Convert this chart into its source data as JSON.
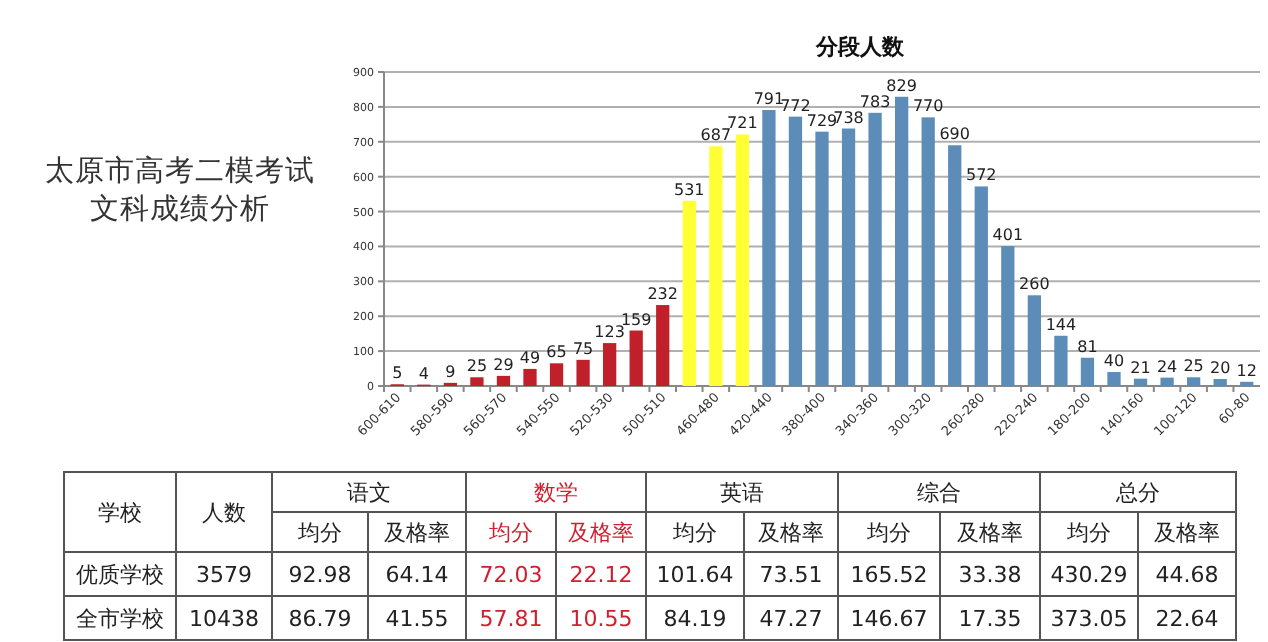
{
  "chart_data": [
    {
      "type": "bar",
      "title": "分段人数",
      "annotations": [
        "太原市高考二模考试",
        "文科成绩分析"
      ],
      "categories": [
        "600-610",
        null,
        "580-590",
        null,
        "560-570",
        null,
        "540-550",
        null,
        "520-530",
        null,
        "500-510",
        null,
        "460-480",
        null,
        "420-440",
        null,
        "380-400",
        null,
        "340-360",
        null,
        "300-320",
        null,
        "260-280",
        null,
        "220-240",
        null,
        "180-200",
        null,
        "140-160",
        null,
        "100-120",
        null,
        "60-80"
      ],
      "values": [
        5,
        4,
        9,
        25,
        29,
        49,
        65,
        75,
        123,
        159,
        232,
        531,
        687,
        721,
        791,
        772,
        729,
        738,
        783,
        829,
        770,
        690,
        572,
        401,
        260,
        144,
        81,
        40,
        21,
        24,
        25,
        20,
        12
      ],
      "colors": [
        "#c0202a",
        "#c0202a",
        "#c0202a",
        "#c0202a",
        "#c0202a",
        "#c0202a",
        "#c0202a",
        "#c0202a",
        "#c0202a",
        "#c0202a",
        "#c0202a",
        "#ffff33",
        "#ffff33",
        "#ffff33",
        "#5b8db8",
        "#5b8db8",
        "#5b8db8",
        "#5b8db8",
        "#5b8db8",
        "#5b8db8",
        "#5b8db8",
        "#5b8db8",
        "#5b8db8",
        "#5b8db8",
        "#5b8db8",
        "#5b8db8",
        "#5b8db8",
        "#5b8db8",
        "#5b8db8",
        "#5b8db8",
        "#5b8db8",
        "#5b8db8",
        "#5b8db8"
      ],
      "ylim": [
        0,
        900
      ],
      "yticks": [
        0,
        100,
        200,
        300,
        400,
        500,
        600,
        700,
        800,
        900
      ],
      "grid": "y",
      "data_labels": true
    },
    {
      "type": "other",
      "annotations": [
        "学校",
        "人数",
        "语文",
        "数学",
        "英语",
        "综合",
        "总分",
        "均分",
        "及格率",
        "均分",
        "及格率",
        "均分",
        "及格率",
        "均分",
        "及格率",
        "均分",
        "及格率",
        "优质学校",
        "3579",
        "92.98",
        "64.14",
        "72.03",
        "22.12",
        "101.64",
        "73.51",
        "165.52",
        "33.38",
        "430.29",
        "44.68",
        "全市学校",
        "10438",
        "86.79",
        "41.55",
        "57.81",
        "10.55",
        "84.19",
        "47.27",
        "146.67",
        "17.35",
        "373.05",
        "22.64"
      ]
    }
  ]
}
